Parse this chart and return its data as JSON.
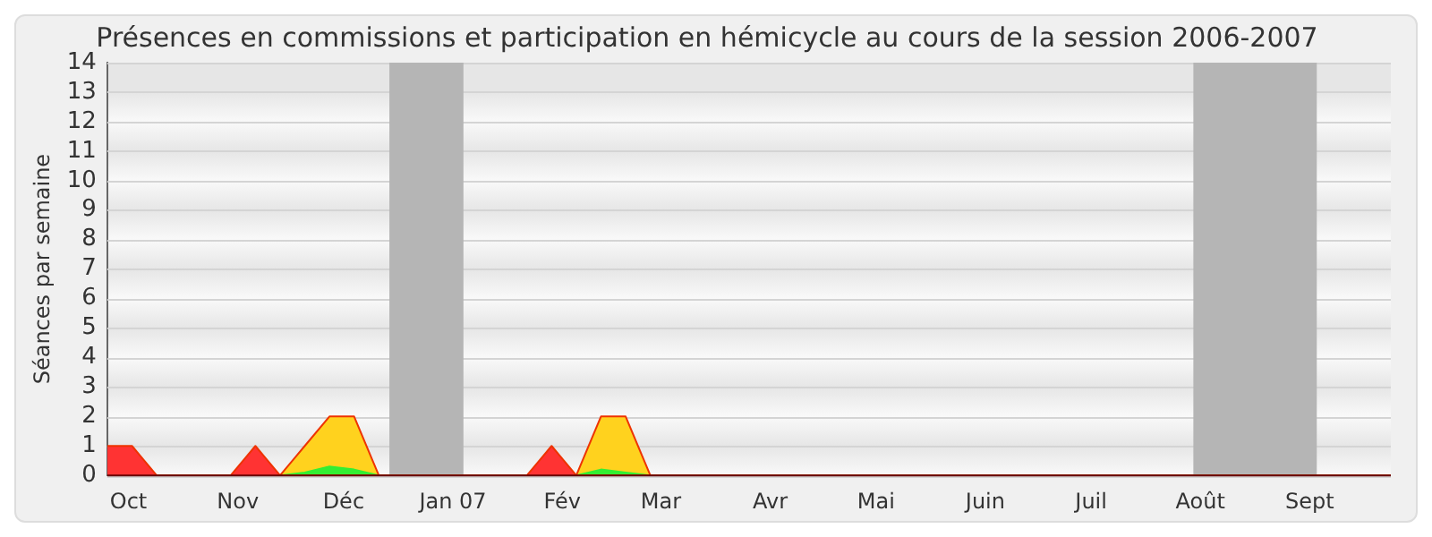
{
  "chart_data": {
    "type": "area",
    "title": "Présences en commissions et participation en hémicycle au cours de la session 2006-2007",
    "ylabel": "Séances par semaine",
    "xlim": [
      "2006-09-25",
      "2007-09-24"
    ],
    "xticks": [
      {
        "value": "2006-10-01",
        "label": "Oct"
      },
      {
        "value": "2006-11-01",
        "label": "Nov"
      },
      {
        "value": "2006-12-01",
        "label": "Déc"
      },
      {
        "value": "2007-01-01",
        "label": "Jan 07"
      },
      {
        "value": "2007-02-01",
        "label": "Fév"
      },
      {
        "value": "2007-03-01",
        "label": "Mar"
      },
      {
        "value": "2007-04-01",
        "label": "Avr"
      },
      {
        "value": "2007-05-01",
        "label": "Mai"
      },
      {
        "value": "2007-06-01",
        "label": "Juin"
      },
      {
        "value": "2007-07-01",
        "label": "Juil"
      },
      {
        "value": "2007-08-01",
        "label": "Août"
      },
      {
        "value": "2007-09-01",
        "label": "Sept"
      }
    ],
    "ylim": [
      0,
      14
    ],
    "yticks": [
      0,
      1,
      2,
      3,
      4,
      5,
      6,
      7,
      8,
      9,
      10,
      11,
      12,
      13,
      14
    ],
    "grid": "y",
    "legend": false,
    "bands": [
      {
        "axis": "x",
        "from": "2006-12-14",
        "to": "2007-01-04",
        "color": "#b5b5b5"
      },
      {
        "axis": "x",
        "from": "2007-07-30",
        "to": "2007-09-03",
        "color": "#b5b5b5"
      }
    ],
    "series": [
      {
        "color": "#ffd21e",
        "x": [
          "2006-09-25",
          "2006-11-13",
          "2006-11-20",
          "2006-11-27",
          "2006-12-04",
          "2006-12-11",
          "2007-02-05",
          "2007-02-12",
          "2007-02-19",
          "2007-02-26",
          "2007-09-24"
        ],
        "values": [
          0,
          0,
          1,
          2,
          2,
          0,
          0,
          2,
          2,
          0,
          0
        ]
      },
      {
        "color": "#33ee33",
        "x": [
          "2006-09-25",
          "2006-11-13",
          "2006-11-20",
          "2006-11-27",
          "2006-12-04",
          "2006-12-11",
          "2007-02-05",
          "2007-02-12",
          "2007-02-19",
          "2007-02-26",
          "2007-09-24"
        ],
        "values": [
          0,
          0,
          0.1,
          0.3,
          0.2,
          0,
          0,
          0.2,
          0.1,
          0,
          0
        ]
      },
      {
        "color": "#ff3333",
        "x": [
          "2006-09-25",
          "2006-10-02",
          "2006-10-09",
          "2006-10-30",
          "2006-11-06",
          "2006-11-13",
          "2007-01-22",
          "2007-01-29",
          "2007-02-05",
          "2007-09-24"
        ],
        "values": [
          1,
          1,
          0,
          0,
          1,
          0,
          0,
          1,
          0,
          0
        ]
      }
    ]
  }
}
